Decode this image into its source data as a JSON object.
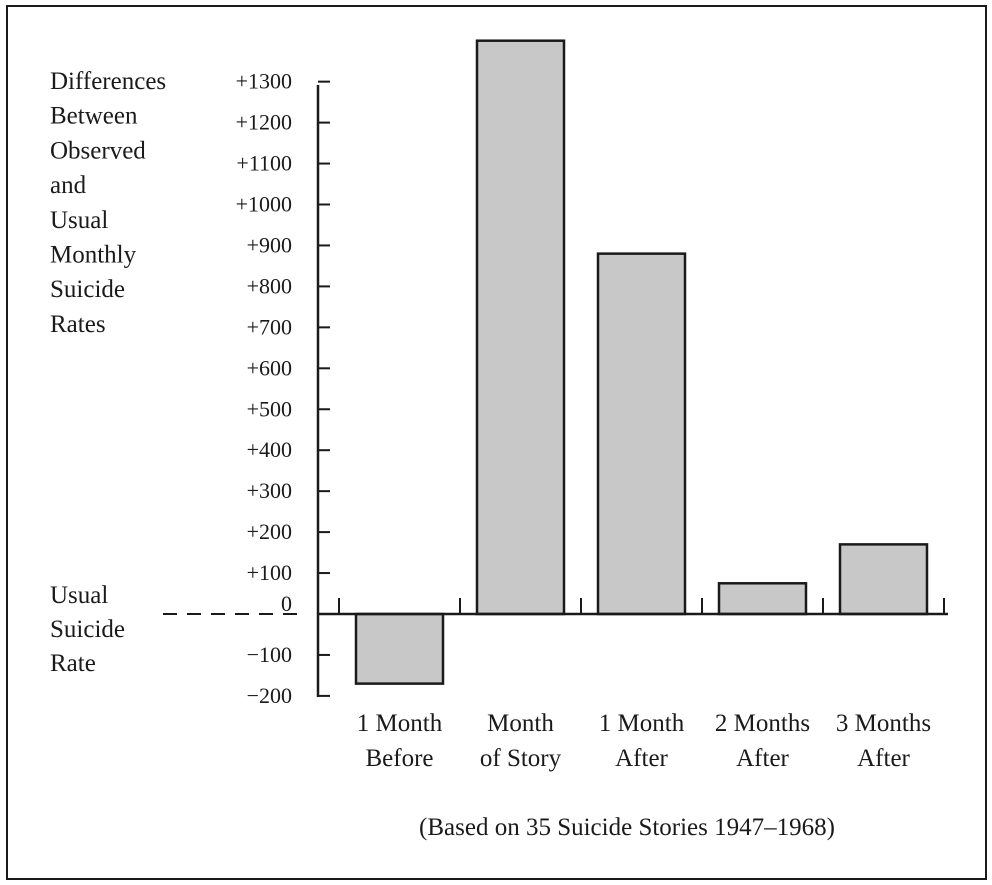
{
  "chart_data": {
    "type": "bar",
    "ylabel_lines": [
      "Differences",
      "Between",
      "Observed",
      "and",
      "Usual",
      "Monthly",
      "Suicide",
      "Rates"
    ],
    "baseline_label_lines": [
      "Usual",
      "Suicide",
      "Rate"
    ],
    "y_ticks": [
      {
        "value": 1300,
        "label": "+1300"
      },
      {
        "value": 1200,
        "label": "+1200"
      },
      {
        "value": 1100,
        "label": "+1100"
      },
      {
        "value": 1000,
        "label": "+1000"
      },
      {
        "value": 900,
        "label": "+900"
      },
      {
        "value": 800,
        "label": "+800"
      },
      {
        "value": 700,
        "label": "+700"
      },
      {
        "value": 600,
        "label": "+600"
      },
      {
        "value": 500,
        "label": "+500"
      },
      {
        "value": 400,
        "label": "+400"
      },
      {
        "value": 300,
        "label": "+300"
      },
      {
        "value": 200,
        "label": "+200"
      },
      {
        "value": 100,
        "label": "+100"
      },
      {
        "value": 0,
        "label": "0"
      },
      {
        "value": -100,
        "label": "−100"
      },
      {
        "value": -200,
        "label": "−200"
      }
    ],
    "categories": [
      [
        "1 Month",
        "Before"
      ],
      [
        "Month",
        "of Story"
      ],
      [
        "1 Month",
        "After"
      ],
      [
        "2 Months",
        "After"
      ],
      [
        "3 Months",
        "After"
      ]
    ],
    "values": [
      -170,
      1400,
      880,
      75,
      170
    ],
    "ylim": [
      -200,
      1400
    ],
    "bar_color": "#c8c8c8",
    "grid": false,
    "footnote": "(Based on 35 Suicide Stories 1947–1968)"
  }
}
